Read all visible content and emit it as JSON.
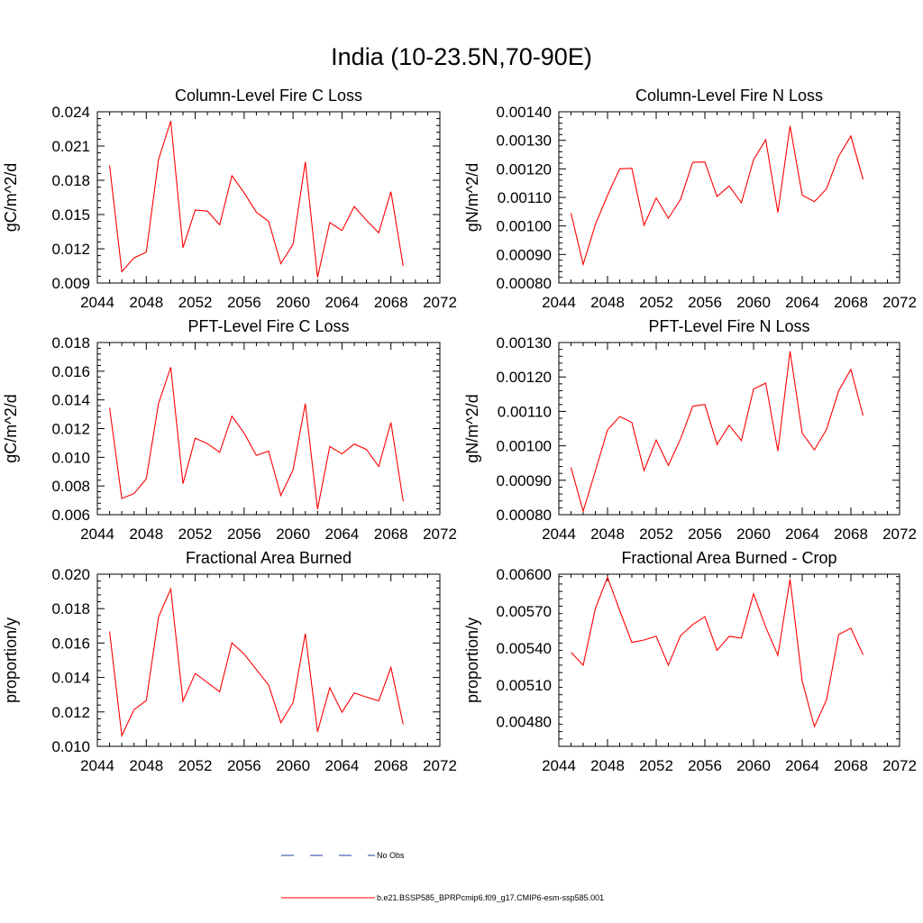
{
  "title": "India (10-23.5N,70-90E)",
  "legend": [
    {
      "label": "No Obs",
      "color": "#1f3fa0",
      "dash": true
    },
    {
      "label": "b.e21.BSSP585_BPRPcmip6.f09_g17.CMIP6-esm-ssp585.001",
      "color": "#ff0000",
      "dash": false
    }
  ],
  "chart_data": [
    {
      "type": "line",
      "title": "Column-Level Fire C Loss",
      "ylabel": "gC/m^2/d",
      "xlim": [
        2044,
        2072
      ],
      "xticks": [
        "2044",
        "2048",
        "2052",
        "2056",
        "2060",
        "2064",
        "2068",
        "2072"
      ],
      "ylim": [
        0.009,
        0.024
      ],
      "yticks": [
        "0.009",
        "0.012",
        "0.015",
        "0.018",
        "0.021",
        "0.024"
      ],
      "x": [
        2045,
        2046,
        2047,
        2048,
        2049,
        2050,
        2051,
        2052,
        2053,
        2054,
        2055,
        2056,
        2057,
        2058,
        2059,
        2060,
        2061,
        2062,
        2063,
        2064,
        2065,
        2066,
        2067,
        2068,
        2069
      ],
      "series": [
        {
          "color": "#ff0000",
          "values": [
            0.0193,
            0.01,
            0.0112,
            0.0117,
            0.0198,
            0.0232,
            0.0121,
            0.0154,
            0.0153,
            0.0141,
            0.0184,
            0.0169,
            0.0152,
            0.0144,
            0.0107,
            0.0124,
            0.0196,
            0.0095,
            0.0143,
            0.0136,
            0.0157,
            0.0145,
            0.0134,
            0.017,
            0.0105
          ]
        }
      ]
    },
    {
      "type": "line",
      "title": "Column-Level Fire N Loss",
      "ylabel": "gN/m^2/d",
      "xlim": [
        2044,
        2072
      ],
      "xticks": [
        "2044",
        "2048",
        "2052",
        "2056",
        "2060",
        "2064",
        "2068",
        "2072"
      ],
      "ylim": [
        0.0008,
        0.0014
      ],
      "yticks": [
        "0.00080",
        "0.00090",
        "0.00100",
        "0.00110",
        "0.00120",
        "0.00130",
        "0.00140"
      ],
      "x": [
        2045,
        2046,
        2047,
        2048,
        2049,
        2050,
        2051,
        2052,
        2053,
        2054,
        2055,
        2056,
        2057,
        2058,
        2059,
        2060,
        2061,
        2062,
        2063,
        2064,
        2065,
        2066,
        2067,
        2068,
        2069
      ],
      "series": [
        {
          "color": "#ff0000",
          "values": [
            0.001045,
            0.000865,
            0.001005,
            0.001107,
            0.0012,
            0.001202,
            0.001002,
            0.001098,
            0.001027,
            0.001093,
            0.001223,
            0.001224,
            0.001103,
            0.00114,
            0.001081,
            0.001232,
            0.001302,
            0.001047,
            0.00135,
            0.001108,
            0.001085,
            0.00113,
            0.001245,
            0.001315,
            0.001163
          ]
        }
      ]
    },
    {
      "type": "line",
      "title": "PFT-Level Fire C Loss",
      "ylabel": "gC/m^2/d",
      "xlim": [
        2044,
        2072
      ],
      "xticks": [
        "2044",
        "2048",
        "2052",
        "2056",
        "2060",
        "2064",
        "2068",
        "2072"
      ],
      "ylim": [
        0.006,
        0.018
      ],
      "yticks": [
        "0.006",
        "0.008",
        "0.010",
        "0.012",
        "0.014",
        "0.016",
        "0.018"
      ],
      "x": [
        2045,
        2046,
        2047,
        2048,
        2049,
        2050,
        2051,
        2052,
        2053,
        2054,
        2055,
        2056,
        2057,
        2058,
        2059,
        2060,
        2061,
        2062,
        2063,
        2064,
        2065,
        2066,
        2067,
        2068,
        2069
      ],
      "series": [
        {
          "color": "#ff0000",
          "values": [
            0.01345,
            0.00713,
            0.00747,
            0.0085,
            0.01375,
            0.01628,
            0.00816,
            0.01133,
            0.01095,
            0.01035,
            0.01287,
            0.01168,
            0.01013,
            0.01043,
            0.00734,
            0.00912,
            0.01374,
            0.00638,
            0.01075,
            0.01024,
            0.01092,
            0.01055,
            0.00936,
            0.01243,
            0.00694
          ]
        }
      ]
    },
    {
      "type": "line",
      "title": "PFT-Level Fire N Loss",
      "ylabel": "gN/m^2/d",
      "xlim": [
        2044,
        2072
      ],
      "xticks": [
        "2044",
        "2048",
        "2052",
        "2056",
        "2060",
        "2064",
        "2068",
        "2072"
      ],
      "ylim": [
        0.0008,
        0.0013
      ],
      "yticks": [
        "0.00080",
        "0.00090",
        "0.00100",
        "0.00110",
        "0.00120",
        "0.00130"
      ],
      "x": [
        2045,
        2046,
        2047,
        2048,
        2049,
        2050,
        2051,
        2052,
        2053,
        2054,
        2055,
        2056,
        2057,
        2058,
        2059,
        2060,
        2061,
        2062,
        2063,
        2064,
        2065,
        2066,
        2067,
        2068,
        2069
      ],
      "series": [
        {
          "color": "#ff0000",
          "values": [
            0.000937,
            0.00081,
            0.000927,
            0.001046,
            0.001085,
            0.001068,
            0.000928,
            0.001017,
            0.000943,
            0.00102,
            0.001115,
            0.00112,
            0.001004,
            0.00106,
            0.001015,
            0.001165,
            0.001182,
            0.000985,
            0.001275,
            0.001037,
            0.000988,
            0.001048,
            0.00116,
            0.001222,
            0.001088
          ]
        }
      ]
    },
    {
      "type": "line",
      "title": "Fractional Area Burned",
      "ylabel": "proportion/y",
      "xlim": [
        2044,
        2072
      ],
      "xticks": [
        "2044",
        "2048",
        "2052",
        "2056",
        "2060",
        "2064",
        "2068",
        "2072"
      ],
      "ylim": [
        0.01,
        0.02
      ],
      "yticks": [
        "0.010",
        "0.012",
        "0.014",
        "0.016",
        "0.018",
        "0.020"
      ],
      "x": [
        2045,
        2046,
        2047,
        2048,
        2049,
        2050,
        2051,
        2052,
        2053,
        2054,
        2055,
        2056,
        2057,
        2058,
        2059,
        2060,
        2061,
        2062,
        2063,
        2064,
        2065,
        2066,
        2067,
        2068,
        2069
      ],
      "series": [
        {
          "color": "#ff0000",
          "values": [
            0.01667,
            0.01062,
            0.01213,
            0.01266,
            0.01751,
            0.01914,
            0.01263,
            0.01423,
            0.01371,
            0.01317,
            0.01601,
            0.01536,
            0.01446,
            0.01356,
            0.01137,
            0.01254,
            0.01655,
            0.01085,
            0.0134,
            0.01198,
            0.0131,
            0.01286,
            0.01264,
            0.01458,
            0.01128
          ]
        }
      ]
    },
    {
      "type": "line",
      "title": "Fractional Area Burned - Crop",
      "ylabel": "proportion/y",
      "xlim": [
        2044,
        2072
      ],
      "xticks": [
        "2044",
        "2048",
        "2052",
        "2056",
        "2060",
        "2064",
        "2068",
        "2072"
      ],
      "ylim": [
        0.0046,
        0.006
      ],
      "yticks": [
        "0.00480",
        "0.00510",
        "0.00540",
        "0.00570",
        "0.00600"
      ],
      "x": [
        2045,
        2046,
        2047,
        2048,
        2049,
        2050,
        2051,
        2052,
        2053,
        2054,
        2055,
        2056,
        2057,
        2058,
        2059,
        2060,
        2061,
        2062,
        2063,
        2064,
        2065,
        2066,
        2067,
        2068,
        2069
      ],
      "series": [
        {
          "color": "#ff0000",
          "values": [
            0.005365,
            0.00526,
            0.00572,
            0.005975,
            0.005705,
            0.005445,
            0.005465,
            0.005495,
            0.00526,
            0.0055,
            0.00559,
            0.005655,
            0.00538,
            0.005495,
            0.00548,
            0.00584,
            0.00557,
            0.00534,
            0.00596,
            0.00513,
            0.00476,
            0.00498,
            0.00551,
            0.00556,
            0.005345
          ]
        }
      ]
    }
  ]
}
